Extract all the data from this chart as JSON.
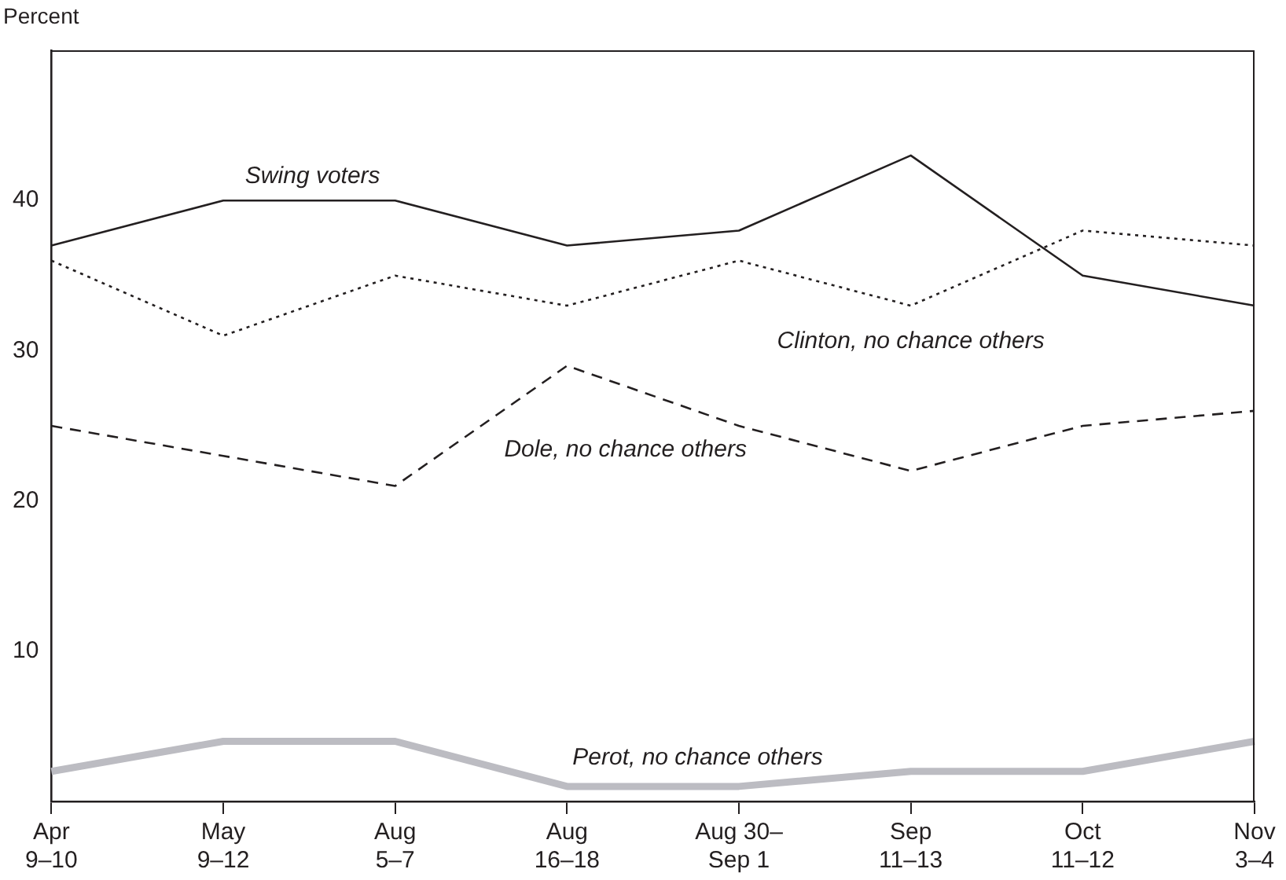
{
  "chart_data": {
    "type": "line",
    "ylabel": "Percent",
    "categories": [
      "Apr\n9–10",
      "May\n9–12",
      "Aug\n5–7",
      "Aug\n16–18",
      "Aug 30–\nSep 1",
      "Sep\n11–13",
      "Oct\n11–12",
      "Nov\n3–4"
    ],
    "series": [
      {
        "name": "Swing voters",
        "color": "#231f20",
        "line_style": "solid",
        "values": [
          37,
          40,
          40,
          37,
          38,
          43,
          35,
          33
        ]
      },
      {
        "name": "Clinton, no chance others",
        "color": "#231f20",
        "line_style": "dotted",
        "values": [
          36,
          31,
          35,
          33,
          36,
          33,
          38,
          37
        ]
      },
      {
        "name": "Dole, no chance others",
        "color": "#231f20",
        "line_style": "dashed",
        "values": [
          25,
          23,
          21,
          29,
          25,
          22,
          25,
          26
        ]
      },
      {
        "name": "Perot, no chance others",
        "color": "#bcbcc2",
        "line_style": "solid",
        "values": [
          2,
          4,
          4,
          1,
          1,
          2,
          2,
          4
        ]
      }
    ],
    "ylim": [
      0,
      50
    ],
    "yticks": [
      10,
      20,
      30,
      40
    ],
    "grid": false,
    "legend": false,
    "marker": "none"
  }
}
